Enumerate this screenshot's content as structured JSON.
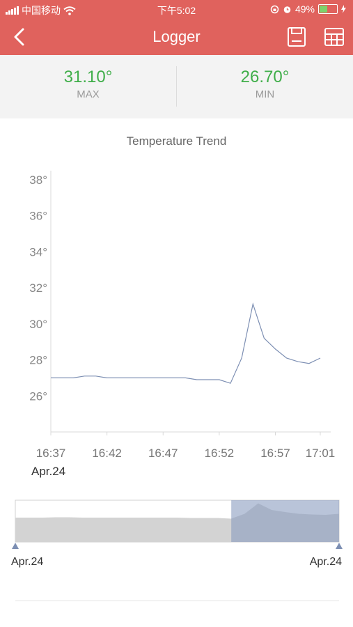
{
  "status_bar": {
    "carrier": "中国移动",
    "time": "下午5:02",
    "battery": "49%"
  },
  "nav": {
    "title": "Logger",
    "icons": [
      "back-arrow-icon",
      "save-icon",
      "table-icon"
    ]
  },
  "stats": {
    "max_value": "31.10°",
    "max_label": "MAX",
    "min_value": "26.70°",
    "min_label": "MIN"
  },
  "chart_data": {
    "type": "line",
    "title": "Temperature Trend",
    "y_ticks": [
      "38°",
      "36°",
      "34°",
      "32°",
      "30°",
      "28°",
      "26°"
    ],
    "x_ticks": [
      "16:37",
      "16:42",
      "16:47",
      "16:52",
      "16:57",
      "17:01"
    ],
    "x_date_label": "Apr.24",
    "ylim": [
      24,
      38.5
    ],
    "grid": false,
    "x": [
      "16:37",
      "16:39",
      "16:40",
      "16:41",
      "16:42",
      "16:43",
      "16:44",
      "16:45",
      "16:46",
      "16:47",
      "16:48",
      "16:49",
      "16:50",
      "16:51",
      "16:52",
      "16:53",
      "16:54",
      "16:55",
      "16:56",
      "16:57",
      "16:58",
      "16:59",
      "17:00",
      "17:01"
    ],
    "values": [
      27.0,
      27.0,
      27.1,
      27.1,
      27.0,
      27.0,
      27.0,
      27.0,
      27.0,
      27.0,
      27.0,
      27.0,
      26.9,
      26.9,
      26.9,
      26.7,
      28.1,
      31.1,
      29.2,
      28.6,
      28.1,
      27.9,
      27.8,
      28.1
    ],
    "color": "#7d8fb3"
  },
  "range_selector": {
    "start_label": "Apr.24",
    "end_label": "Apr.24",
    "selected_fraction": [
      0.667,
      1.0
    ]
  }
}
